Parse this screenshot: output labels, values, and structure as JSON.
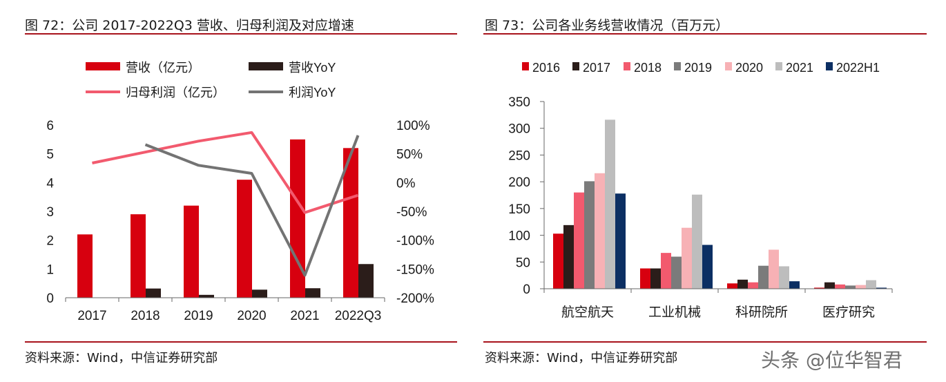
{
  "left": {
    "title": "图 72：公司 2017-2022Q3 营收、归母利润及对应增速",
    "source": "资料来源：Wind，中信证券研究部",
    "legend": {
      "revenue": "营收（亿元）",
      "revenue_yoy": "营收YoY",
      "profit": "归母利润（亿元）",
      "profit_yoy": "利润YoY"
    },
    "colors": {
      "revenue": "#d7000f",
      "revenue_yoy": "#2b1d1a",
      "profit": "#f25a6e",
      "profit_yoy": "#737373"
    }
  },
  "right": {
    "title": "图 73：公司各业务线营收情况（百万元）",
    "source": "资料来源：Wind，中信证券研究部"
  },
  "watermark": "头条 @位华智君",
  "chart_data": [
    {
      "type": "bar+line",
      "title": "图 72：公司 2017-2022Q3 营收、归母利润及对应增速",
      "categories": [
        "2017",
        "2018",
        "2019",
        "2020",
        "2021",
        "2022Q3"
      ],
      "y_left": {
        "min": 0,
        "max": 6,
        "ticks": [
          "0",
          "1",
          "2",
          "3",
          "4",
          "5",
          "6"
        ]
      },
      "y_right": {
        "min": -200,
        "max": 100,
        "ticks": [
          "-200%",
          "-150%",
          "-100%",
          "-50%",
          "0%",
          "50%",
          "100%"
        ]
      },
      "series": [
        {
          "name": "营收（亿元）",
          "type": "bar",
          "axis": "left",
          "values": [
            2.2,
            2.9,
            3.2,
            4.1,
            5.5,
            5.2
          ]
        },
        {
          "name": "营收YoY",
          "type": "bar",
          "axis": "left",
          "values": [
            null,
            0.32,
            0.1,
            0.28,
            0.33,
            1.17
          ]
        },
        {
          "name": "归母利润（亿元）",
          "type": "line",
          "axis": "right",
          "values": [
            34,
            null,
            72,
            87,
            -52,
            -22
          ]
        },
        {
          "name": "利润YoY",
          "type": "line",
          "axis": "right",
          "values": [
            null,
            66,
            30,
            16,
            -161,
            82
          ]
        }
      ]
    },
    {
      "type": "bar",
      "title": "图 73：公司各业务线营收情况（百万元）",
      "categories": [
        "航空航天",
        "工业机械",
        "科研院所",
        "医疗研究"
      ],
      "ylim": [
        0,
        350
      ],
      "y_ticks": [
        "0",
        "50",
        "100",
        "150",
        "200",
        "250",
        "300",
        "350"
      ],
      "series": [
        {
          "name": "2016",
          "color": "#d7000f",
          "values": [
            103,
            38,
            10,
            2
          ]
        },
        {
          "name": "2017",
          "color": "#2b1d1a",
          "values": [
            119,
            38,
            17,
            12
          ]
        },
        {
          "name": "2018",
          "color": "#f25a6e",
          "values": [
            180,
            67,
            12,
            8
          ]
        },
        {
          "name": "2019",
          "color": "#7b7b7b",
          "values": [
            201,
            60,
            43,
            6
          ]
        },
        {
          "name": "2020",
          "color": "#f7b1b5",
          "values": [
            216,
            114,
            73,
            7
          ]
        },
        {
          "name": "2021",
          "color": "#bdbdbd",
          "values": [
            316,
            176,
            42,
            16
          ]
        },
        {
          "name": "2022H1",
          "color": "#0c2f63",
          "values": [
            178,
            82,
            14,
            2
          ]
        }
      ]
    }
  ]
}
